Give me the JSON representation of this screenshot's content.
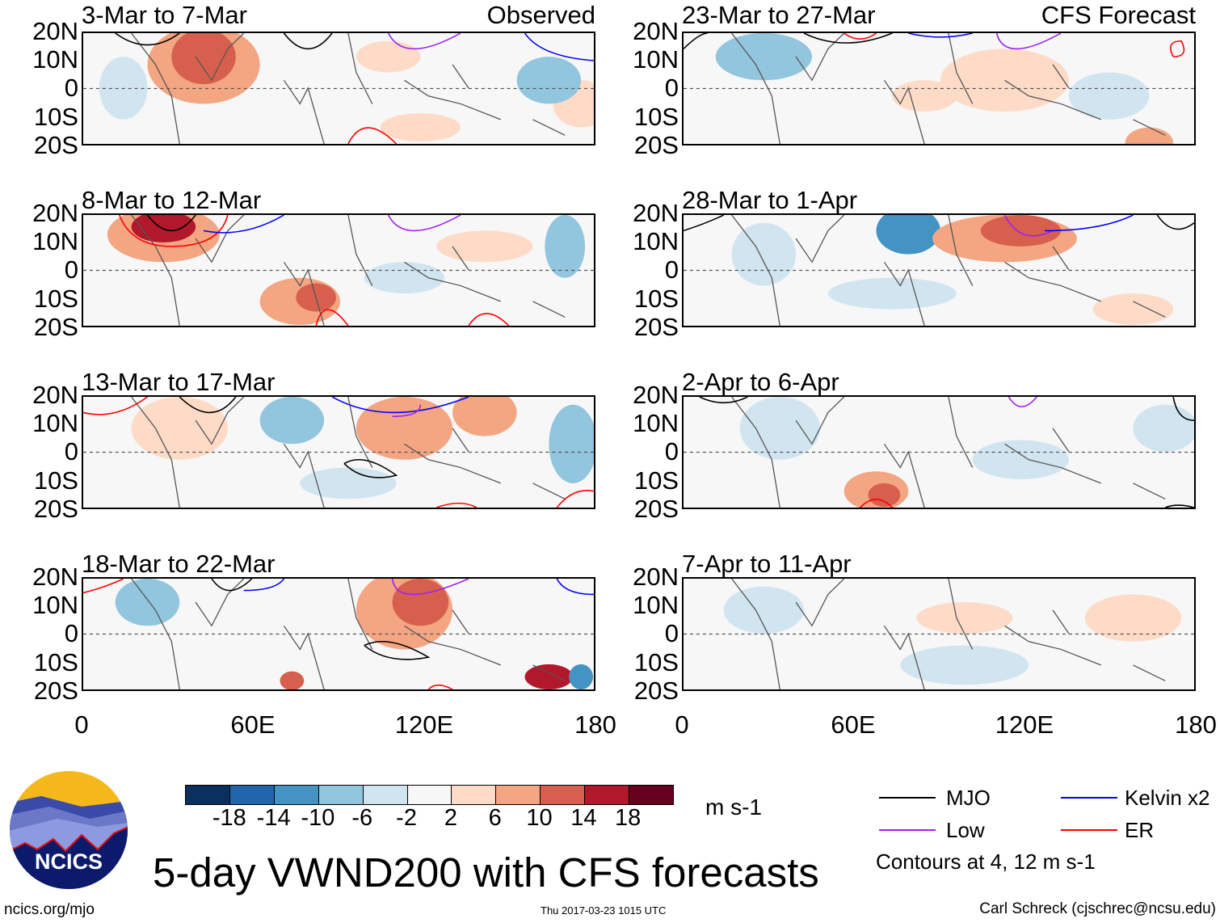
{
  "figure": {
    "title": "5-day VWND200 with CFS forecasts",
    "observed_label": "Observed",
    "forecast_label": "CFS Forecast",
    "units": "m s-1",
    "timestamp": "Thu 2017-03-23 1015 UTC",
    "url": "ncics.org/mjo",
    "author": "Carl Schreck (cjschrec@ncsu.edu)",
    "logo_text": "NCICS"
  },
  "panels_observed": [
    {
      "title": "3-Mar to 7-Mar"
    },
    {
      "title": "8-Mar to 12-Mar"
    },
    {
      "title": "13-Mar to 17-Mar"
    },
    {
      "title": "18-Mar to 22-Mar"
    }
  ],
  "panels_forecast": [
    {
      "title": "23-Mar to 27-Mar"
    },
    {
      "title": "28-Mar to 1-Apr"
    },
    {
      "title": "2-Apr to 6-Apr"
    },
    {
      "title": "7-Apr to 11-Apr"
    }
  ],
  "y_ticks": [
    "20N",
    "10N",
    "0",
    "10S",
    "20S"
  ],
  "x_ticks": [
    "0",
    "60E",
    "120E",
    "180"
  ],
  "colorbar": {
    "labels": [
      "-18",
      "-14",
      "-10",
      "-6",
      "-2",
      "2",
      "6",
      "10",
      "14",
      "18"
    ],
    "colors": [
      "#0b2f5e",
      "#2166ac",
      "#4393c3",
      "#92c5de",
      "#d1e5f0",
      "#f7f7f7",
      "#fddbc7",
      "#f4a582",
      "#d6604d",
      "#b2182b",
      "#67001f"
    ]
  },
  "legend": {
    "items": [
      {
        "label": "MJO",
        "color": "#000000"
      },
      {
        "label": "Kelvin x2",
        "color": "#0000ff"
      },
      {
        "label": "Low",
        "color": "#a020f0"
      },
      {
        "label": "ER",
        "color": "#ff0000"
      }
    ],
    "note": "Contours at 4, 12 m s-1"
  }
}
